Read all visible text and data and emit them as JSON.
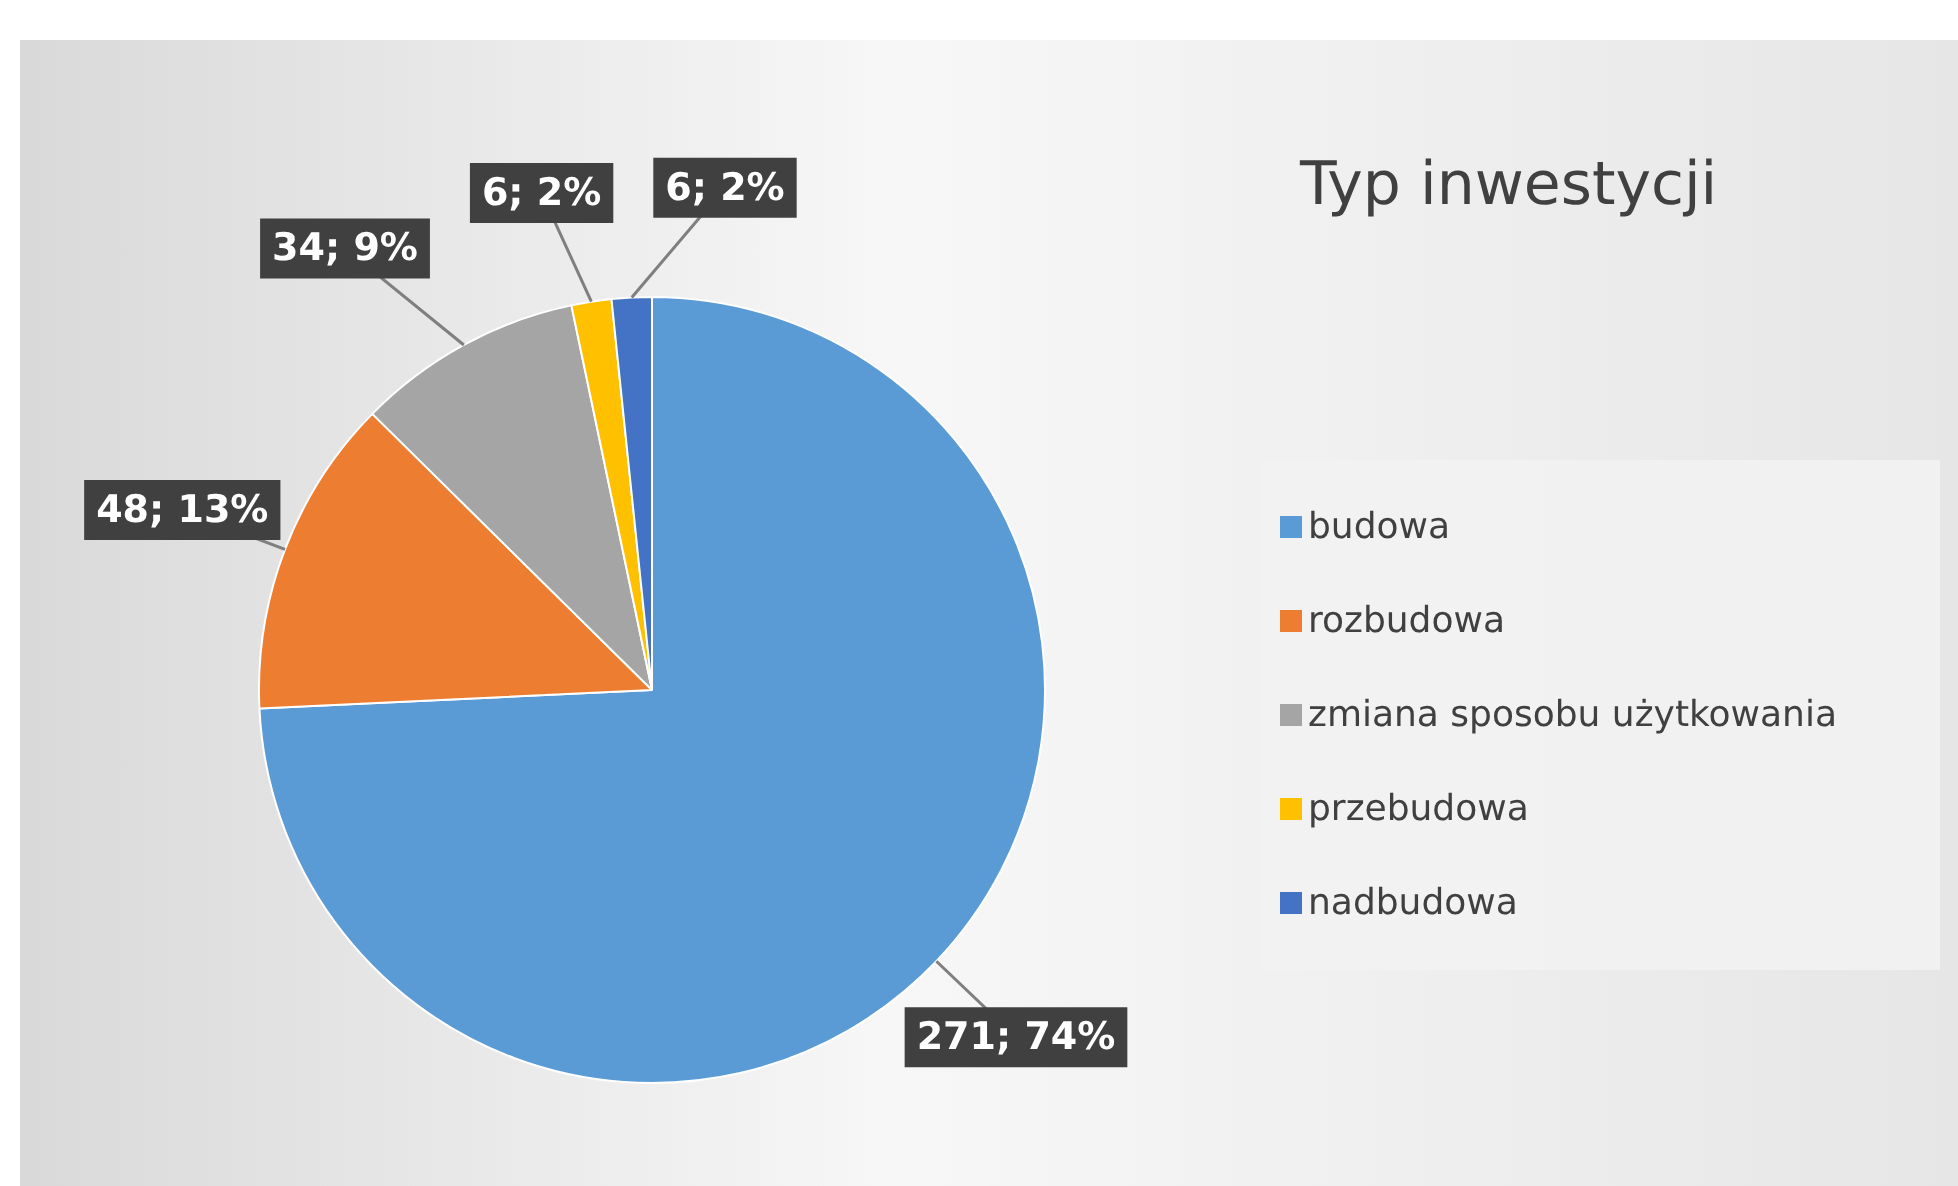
{
  "chart_data": {
    "type": "pie",
    "title": "Typ inwestycji",
    "categories": [
      "budowa",
      "rozbudowa",
      "zmiana sposobu użytkowania",
      "przebudowa",
      "nadbudowa"
    ],
    "values": [
      271,
      48,
      34,
      6,
      6
    ],
    "value_labels": [
      "271; 74%",
      "48; 13%",
      "34; 9%",
      "6; 2%",
      "6; 2%"
    ],
    "colors": [
      "#5b9bd5",
      "#ed7d31",
      "#a5a5a5",
      "#ffc000",
      "#4472c4"
    ],
    "legend": "right"
  }
}
